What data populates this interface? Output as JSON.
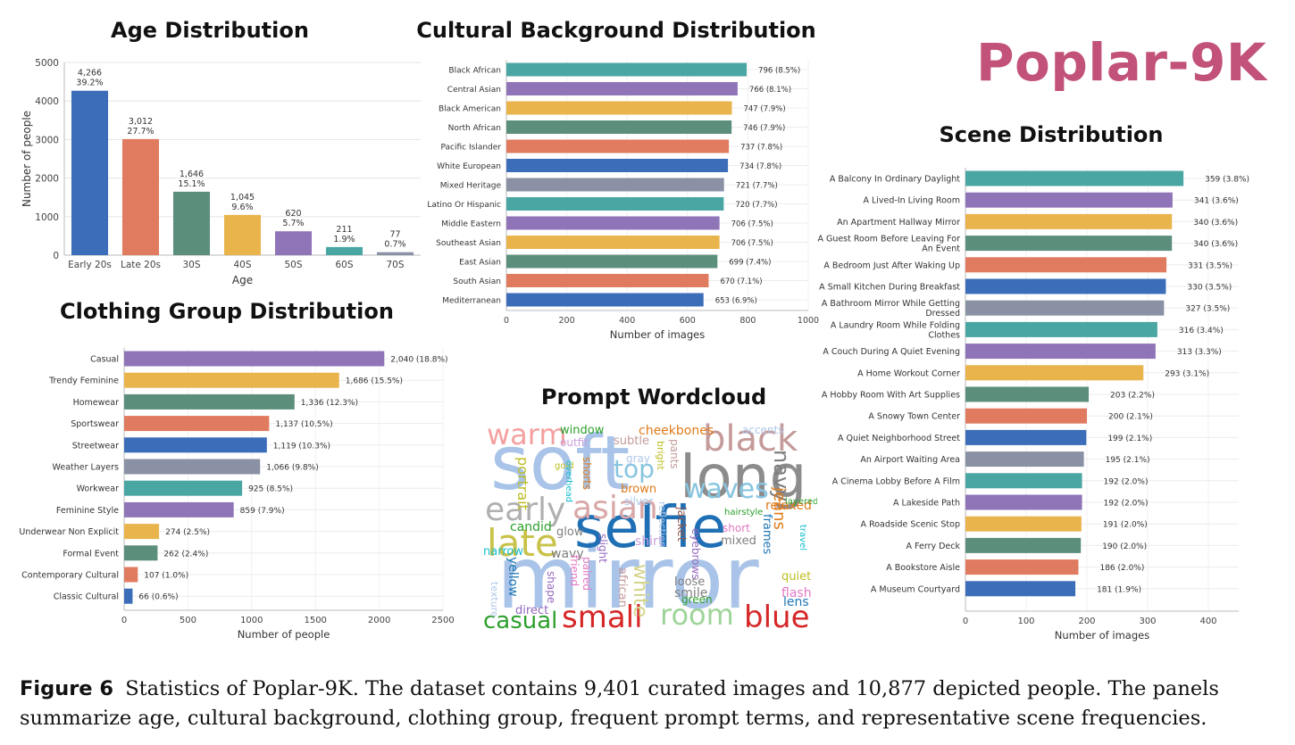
{
  "brand": "Poplar-9K",
  "caption": {
    "lead": "Figure 6",
    "text": "Statistics of Poplar-9K. The dataset contains 9,401 curated images and 10,877 depicted people. The panels summarize age, cultural background, clothing group, frequent prompt terms, and representative scene frequencies."
  },
  "wordcloud": {
    "title": "Prompt Wordcloud",
    "words": [
      {
        "text": "soft",
        "color": "#a9c4e8"
      },
      {
        "text": "long",
        "color": "#8c8c8c"
      },
      {
        "text": "mirror",
        "color": "#a9c4e8"
      },
      {
        "text": "selfie",
        "color": "#1f6fb5"
      },
      {
        "text": "early",
        "color": "#b0b0b0"
      },
      {
        "text": "asian",
        "color": "#d9a7a7"
      },
      {
        "text": "late",
        "color": "#c9c24a"
      },
      {
        "text": "warm",
        "color": "#f4a0a0"
      },
      {
        "text": "black",
        "color": "#c49a9a"
      },
      {
        "text": "waves",
        "color": "#87c5e0"
      },
      {
        "text": "small",
        "color": "#d62728"
      },
      {
        "text": "room",
        "color": "#9fd49a"
      },
      {
        "text": "blue",
        "color": "#d62728"
      },
      {
        "text": "casual",
        "color": "#2ca02c"
      },
      {
        "text": "top",
        "color": "#87c5e0"
      },
      {
        "text": "window",
        "color": "#2ca02c"
      },
      {
        "text": "cheekbones",
        "color": "#e07b1a"
      },
      {
        "text": "navy",
        "color": "#7f7f7f"
      },
      {
        "text": "jeans",
        "color": "#e07b1a"
      },
      {
        "text": "relaxed",
        "color": "#e07b1a"
      },
      {
        "text": "outfit",
        "color": "#c9a0dc"
      },
      {
        "text": "subtle",
        "color": "#c49a9a"
      },
      {
        "text": "accents",
        "color": "#aec7e8"
      },
      {
        "text": "portrait",
        "color": "#bcbd22"
      },
      {
        "text": "candid",
        "color": "#2ca02c"
      },
      {
        "text": "glow",
        "color": "#7f7f7f"
      },
      {
        "text": "brown",
        "color": "#e07b1a"
      },
      {
        "text": "shirt",
        "color": "#c9a0dc"
      },
      {
        "text": "bathroom",
        "color": "#17becf"
      },
      {
        "text": "hairstyle",
        "color": "#2ca02c"
      },
      {
        "text": "narrow",
        "color": "#17becf"
      },
      {
        "text": "wavy",
        "color": "#7f7f7f"
      },
      {
        "text": "yellow",
        "color": "#1f77b4"
      },
      {
        "text": "white",
        "color": "#d4d48a"
      },
      {
        "text": "lens",
        "color": "#1f77b4"
      },
      {
        "text": "flash",
        "color": "#e377c2"
      },
      {
        "text": "quiet",
        "color": "#bcbd22"
      },
      {
        "text": "green",
        "color": "#2ca02c"
      },
      {
        "text": "smile",
        "color": "#7f7f7f"
      },
      {
        "text": "shadows",
        "color": "#aec7e8"
      },
      {
        "text": "direct",
        "color": "#9467bd"
      },
      {
        "text": "gray",
        "color": "#aec7e8"
      },
      {
        "text": "short",
        "color": "#e377c2"
      },
      {
        "text": "mixed",
        "color": "#7f7f7f"
      },
      {
        "text": "layered",
        "color": "#2ca02c"
      },
      {
        "text": "jacket",
        "color": "#8c564b"
      },
      {
        "text": "eyebrows",
        "color": "#9467bd"
      },
      {
        "text": "frames",
        "color": "#1f77b4"
      },
      {
        "text": "texture",
        "color": "#aec7e8"
      },
      {
        "text": "african",
        "color": "#c49a9a"
      },
      {
        "text": "reflection",
        "color": "#aec7e8"
      },
      {
        "text": "loose",
        "color": "#7f7f7f"
      },
      {
        "text": "slight",
        "color": "#9467bd"
      },
      {
        "text": "paired",
        "color": "#e377c2"
      },
      {
        "text": "friend",
        "color": "#e377c2"
      },
      {
        "text": "silver",
        "color": "#aec7e8"
      },
      {
        "text": "pants",
        "color": "#c49a9a"
      },
      {
        "text": "shape",
        "color": "#9467bd"
      },
      {
        "text": "bright",
        "color": "#bcbd22"
      },
      {
        "text": "shorts",
        "color": "#e07b1a"
      },
      {
        "text": "gold",
        "color": "#bcbd22"
      },
      {
        "text": "overhead",
        "color": "#17becf"
      },
      {
        "text": "travel",
        "color": "#17becf"
      }
    ]
  },
  "age_chart": {
    "title": "Age Distribution",
    "chart_data": {
      "type": "bar",
      "categories": [
        "Early 20s",
        "Late 20s",
        "30S",
        "40S",
        "50S",
        "60S",
        "70S"
      ],
      "values": [
        4266,
        3012,
        1646,
        1045,
        620,
        211,
        77
      ],
      "labels": [
        [
          "4,266",
          "39.2%"
        ],
        [
          "3,012",
          "27.7%"
        ],
        [
          "1,646",
          "15.1%"
        ],
        [
          "1,045",
          "9.6%"
        ],
        [
          "620",
          "5.7%"
        ],
        [
          "211",
          "1.9%"
        ],
        [
          "77",
          "0.7%"
        ]
      ],
      "colors": [
        "#3b6db8",
        "#e07b5f",
        "#5b8f7b",
        "#e9b44c",
        "#8f74b8",
        "#4aa6a3",
        "#8a91a4"
      ],
      "xlabel": "Age",
      "ylabel": "Number of people",
      "ylim": [
        0,
        5000
      ],
      "yticks": [
        0,
        1000,
        2000,
        3000,
        4000,
        5000
      ],
      "grid": true
    }
  },
  "culture_chart": {
    "title": "Cultural Background Distribution",
    "chart_data": {
      "type": "bar",
      "orientation": "horizontal",
      "categories": [
        "Black African",
        "Central Asian",
        "Black American",
        "North African",
        "Pacific Islander",
        "White European",
        "Mixed Heritage",
        "Latino Or Hispanic",
        "Middle Eastern",
        "Southeast Asian",
        "East Asian",
        "South Asian",
        "Mediterranean"
      ],
      "values": [
        796,
        766,
        747,
        746,
        737,
        734,
        721,
        720,
        706,
        706,
        699,
        670,
        653
      ],
      "labels": [
        "796 (8.5%)",
        "766 (8.1%)",
        "747 (7.9%)",
        "746 (7.9%)",
        "737 (7.8%)",
        "734 (7.8%)",
        "721 (7.7%)",
        "720 (7.7%)",
        "706 (7.5%)",
        "706 (7.5%)",
        "699 (7.4%)",
        "670 (7.1%)",
        "653 (6.9%)"
      ],
      "colors": [
        "#4aa6a3",
        "#8f74b8",
        "#e9b44c",
        "#5b8f7b",
        "#e07b5f",
        "#3b6db8",
        "#8a91a4",
        "#4aa6a3",
        "#8f74b8",
        "#e9b44c",
        "#5b8f7b",
        "#e07b5f",
        "#3b6db8"
      ],
      "xlabel": "Number of images",
      "xlim": [
        0,
        1000
      ],
      "xticks": [
        0,
        200,
        400,
        600,
        800,
        1000
      ],
      "grid": true
    }
  },
  "clothing_chart": {
    "title": "Clothing Group Distribution",
    "chart_data": {
      "type": "bar",
      "orientation": "horizontal",
      "categories": [
        "Casual",
        "Trendy Feminine",
        "Homewear",
        "Sportswear",
        "Streetwear",
        "Weather Layers",
        "Workwear",
        "Feminine Style",
        "Underwear Non Explicit",
        "Formal Event",
        "Contemporary Cultural",
        "Classic Cultural"
      ],
      "values": [
        2040,
        1686,
        1336,
        1137,
        1119,
        1066,
        925,
        859,
        274,
        262,
        107,
        66
      ],
      "labels": [
        "2,040 (18.8%)",
        "1,686 (15.5%)",
        "1,336 (12.3%)",
        "1,137 (10.5%)",
        "1,119 (10.3%)",
        "1,066 (9.8%)",
        "925 (8.5%)",
        "859 (7.9%)",
        "274 (2.5%)",
        "262 (2.4%)",
        "107 (1.0%)",
        "66 (0.6%)"
      ],
      "colors": [
        "#8f74b8",
        "#e9b44c",
        "#5b8f7b",
        "#e07b5f",
        "#3b6db8",
        "#8a91a4",
        "#4aa6a3",
        "#8f74b8",
        "#e9b44c",
        "#5b8f7b",
        "#e07b5f",
        "#3b6db8"
      ],
      "xlabel": "Number of people",
      "xlim": [
        0,
        2500
      ],
      "xticks": [
        0,
        500,
        1000,
        1500,
        2000,
        2500
      ],
      "grid": true
    }
  },
  "scene_chart": {
    "title": "Scene Distribution",
    "chart_data": {
      "type": "bar",
      "orientation": "horizontal",
      "categories": [
        "A Balcony In Ordinary Daylight",
        "A Lived-In Living Room",
        "An Apartment Hallway Mirror",
        "A Guest Room Before Leaving For|An Event",
        "A Bedroom Just After Waking Up",
        "A Small Kitchen During Breakfast",
        "A Bathroom Mirror While Getting|Dressed",
        "A Laundry Room While Folding|Clothes",
        "A Couch During A Quiet Evening",
        "A Home Workout Corner",
        "A Hobby Room With Art Supplies",
        "A Snowy Town Center",
        "A Quiet Neighborhood Street",
        "An Airport Waiting Area",
        "A Cinema Lobby Before A Film",
        "A Lakeside Path",
        "A Roadside Scenic Stop",
        "A Ferry Deck",
        "A Bookstore Aisle",
        "A Museum Courtyard"
      ],
      "values": [
        359,
        341,
        340,
        340,
        331,
        330,
        327,
        316,
        313,
        293,
        203,
        200,
        199,
        195,
        192,
        192,
        191,
        190,
        186,
        181
      ],
      "labels": [
        "359 (3.8%)",
        "341 (3.6%)",
        "340 (3.6%)",
        "340 (3.6%)",
        "331 (3.5%)",
        "330 (3.5%)",
        "327 (3.5%)",
        "316 (3.4%)",
        "313 (3.3%)",
        "293 (3.1%)",
        "203 (2.2%)",
        "200 (2.1%)",
        "199 (2.1%)",
        "195 (2.1%)",
        "192 (2.0%)",
        "192 (2.0%)",
        "191 (2.0%)",
        "190 (2.0%)",
        "186 (2.0%)",
        "181 (1.9%)"
      ],
      "colors": [
        "#4aa6a3",
        "#8f74b8",
        "#e9b44c",
        "#5b8f7b",
        "#e07b5f",
        "#3b6db8",
        "#8a91a4",
        "#4aa6a3",
        "#8f74b8",
        "#e9b44c",
        "#5b8f7b",
        "#e07b5f",
        "#3b6db8",
        "#8a91a4",
        "#4aa6a3",
        "#8f74b8",
        "#e9b44c",
        "#5b8f7b",
        "#e07b5f",
        "#3b6db8"
      ],
      "xlabel": "Number of images",
      "xlim": [
        0,
        450
      ],
      "xticks": [
        0,
        100,
        200,
        300,
        400
      ],
      "grid": true
    }
  }
}
